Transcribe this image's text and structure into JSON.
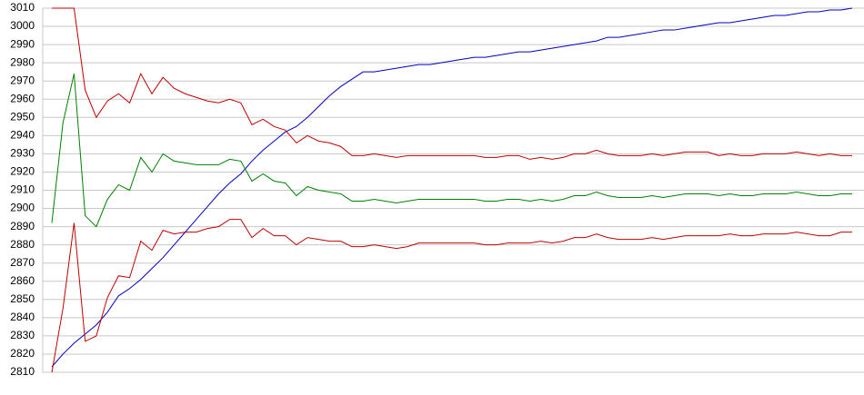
{
  "chart_data": {
    "type": "line",
    "categories": [
      null,
      null,
      null,
      null,
      null,
      null,
      null,
      null,
      null,
      null,
      null,
      null,
      null,
      null,
      null,
      null,
      null,
      null,
      null,
      null,
      null,
      null,
      null,
      null,
      null,
      null,
      null,
      null,
      null,
      null,
      null,
      null,
      null,
      null,
      null,
      null,
      null,
      null,
      null,
      null,
      null,
      null,
      null,
      null,
      null,
      null,
      null,
      null,
      null,
      null,
      null,
      null,
      null,
      null,
      null,
      null,
      null,
      null,
      null,
      null,
      null,
      null,
      null,
      null,
      null,
      null,
      null,
      null,
      null,
      null,
      null,
      null,
      null
    ],
    "ylim": [
      2810,
      3010
    ],
    "yticks": [
      2810,
      2820,
      2830,
      2840,
      2850,
      2860,
      2870,
      2880,
      2890,
      2900,
      2910,
      2920,
      2930,
      2940,
      2950,
      2960,
      2970,
      2980,
      2990,
      3000,
      3010
    ],
    "grid": true,
    "series": [
      {
        "color": "#0000c0",
        "values": [
          2813,
          2820,
          2826,
          2831,
          2836,
          2843,
          2852,
          2856,
          2861,
          2867,
          2873,
          2880,
          2887,
          2894,
          2901,
          2908,
          2914,
          2919,
          2926,
          2932,
          2937,
          2942,
          2945,
          2950,
          2956,
          2962,
          2967,
          2971,
          2975,
          2975,
          2976,
          2977,
          2978,
          2979,
          2979,
          2980,
          2981,
          2982,
          2983,
          2983,
          2984,
          2985,
          2986,
          2986,
          2987,
          2988,
          2989,
          2990,
          2991,
          2992,
          2994,
          2994,
          2995,
          2996,
          2997,
          2998,
          2998,
          2999,
          3000,
          3001,
          3002,
          3002,
          3003,
          3004,
          3005,
          3006,
          3006,
          3007,
          3008,
          3008,
          3009,
          3009,
          3010
        ]
      },
      {
        "color": "#c00000",
        "values": [
          3010,
          3010,
          3010,
          2965,
          2950,
          2959,
          2963,
          2958,
          2974,
          2963,
          2972,
          2966,
          2963,
          2961,
          2959,
          2958,
          2960,
          2958,
          2946,
          2949,
          2945,
          2943,
          2936,
          2940,
          2937,
          2936,
          2934,
          2929,
          2929,
          2930,
          2929,
          2928,
          2929,
          2929,
          2929,
          2929,
          2929,
          2929,
          2929,
          2928,
          2928,
          2929,
          2929,
          2927,
          2928,
          2927,
          2928,
          2930,
          2930,
          2932,
          2930,
          2929,
          2929,
          2929,
          2930,
          2929,
          2930,
          2931,
          2931,
          2931,
          2929,
          2930,
          2929,
          2929,
          2930,
          2930,
          2930,
          2931,
          2930,
          2929,
          2930,
          2929,
          2929
        ]
      },
      {
        "color": "#008000",
        "values": [
          2892,
          2947,
          2974,
          2896,
          2890,
          2905,
          2913,
          2910,
          2928,
          2920,
          2930,
          2926,
          2925,
          2924,
          2924,
          2924,
          2927,
          2926,
          2915,
          2919,
          2915,
          2914,
          2907,
          2912,
          2910,
          2909,
          2908,
          2904,
          2904,
          2905,
          2904,
          2903,
          2904,
          2905,
          2905,
          2905,
          2905,
          2905,
          2905,
          2904,
          2904,
          2905,
          2905,
          2904,
          2905,
          2904,
          2905,
          2907,
          2907,
          2909,
          2907,
          2906,
          2906,
          2906,
          2907,
          2906,
          2907,
          2908,
          2908,
          2908,
          2907,
          2908,
          2907,
          2907,
          2908,
          2908,
          2908,
          2909,
          2908,
          2907,
          2907,
          2908,
          2908
        ]
      },
      {
        "color": "#c00000",
        "values": [
          2810,
          2845,
          2892,
          2827,
          2830,
          2851,
          2863,
          2862,
          2882,
          2877,
          2888,
          2886,
          2887,
          2887,
          2889,
          2890,
          2894,
          2894,
          2884,
          2889,
          2885,
          2885,
          2880,
          2884,
          2883,
          2882,
          2882,
          2879,
          2879,
          2880,
          2879,
          2878,
          2879,
          2881,
          2881,
          2881,
          2881,
          2881,
          2881,
          2880,
          2880,
          2881,
          2881,
          2881,
          2882,
          2881,
          2882,
          2884,
          2884,
          2886,
          2884,
          2883,
          2883,
          2883,
          2884,
          2883,
          2884,
          2885,
          2885,
          2885,
          2885,
          2886,
          2885,
          2885,
          2886,
          2886,
          2886,
          2887,
          2886,
          2885,
          2885,
          2887,
          2887
        ]
      }
    ]
  }
}
